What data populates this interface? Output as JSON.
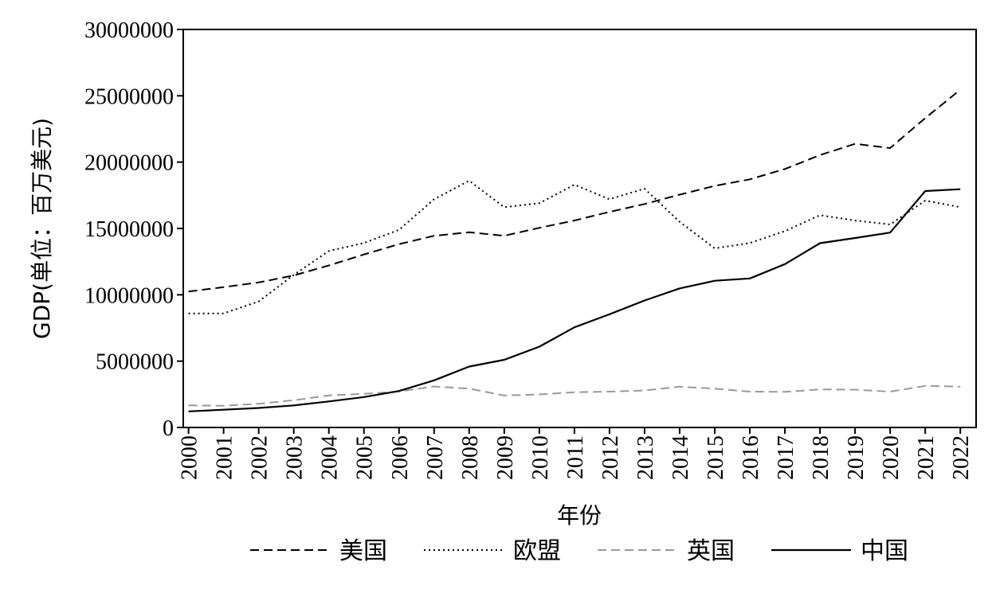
{
  "chart_data": {
    "type": "line",
    "xlabel": "年份",
    "ylabel": "GDP(单位：百万美元)",
    "x": [
      "2000",
      "2001",
      "2002",
      "2003",
      "2004",
      "2005",
      "2006",
      "2007",
      "2008",
      "2009",
      "2010",
      "2011",
      "2012",
      "2013",
      "2014",
      "2015",
      "2016",
      "2017",
      "2018",
      "2019",
      "2020",
      "2021",
      "2022"
    ],
    "yticks": [
      "0",
      "5000000",
      "10000000",
      "15000000",
      "20000000",
      "25000000",
      "30000000"
    ],
    "ylim": [
      0,
      30000000
    ],
    "grid": false,
    "legend_position": "bottom",
    "series": [
      {
        "name": "美国",
        "style": "dashed",
        "color": "#000000",
        "values": [
          10250000,
          10580000,
          10930000,
          11460000,
          12210000,
          13040000,
          13820000,
          14450000,
          14710000,
          14450000,
          15050000,
          15600000,
          16250000,
          16840000,
          17550000,
          18210000,
          18700000,
          19480000,
          20530000,
          21380000,
          21060000,
          23320000,
          25460000
        ]
      },
      {
        "name": "欧盟",
        "style": "dotted",
        "color": "#000000",
        "values": [
          8600000,
          8600000,
          9500000,
          11500000,
          13300000,
          13900000,
          14900000,
          17200000,
          18600000,
          16600000,
          16900000,
          18300000,
          17200000,
          18000000,
          15500000,
          13500000,
          13900000,
          14800000,
          16000000,
          15600000,
          15300000,
          17100000,
          16600000
        ]
      },
      {
        "name": "英国",
        "style": "dashed-light",
        "color": "#999999",
        "values": [
          1660000,
          1640000,
          1780000,
          2050000,
          2420000,
          2540000,
          2710000,
          3090000,
          2930000,
          2410000,
          2490000,
          2660000,
          2700000,
          2790000,
          3070000,
          2930000,
          2700000,
          2680000,
          2870000,
          2850000,
          2700000,
          3130000,
          3080000
        ]
      },
      {
        "name": "中国",
        "style": "solid",
        "color": "#000000",
        "values": [
          1210000,
          1340000,
          1470000,
          1660000,
          1960000,
          2290000,
          2750000,
          3550000,
          4590000,
          5100000,
          6090000,
          7550000,
          8530000,
          9570000,
          10480000,
          11060000,
          11230000,
          12310000,
          13890000,
          14280000,
          14690000,
          17820000,
          17960000
        ]
      }
    ]
  }
}
